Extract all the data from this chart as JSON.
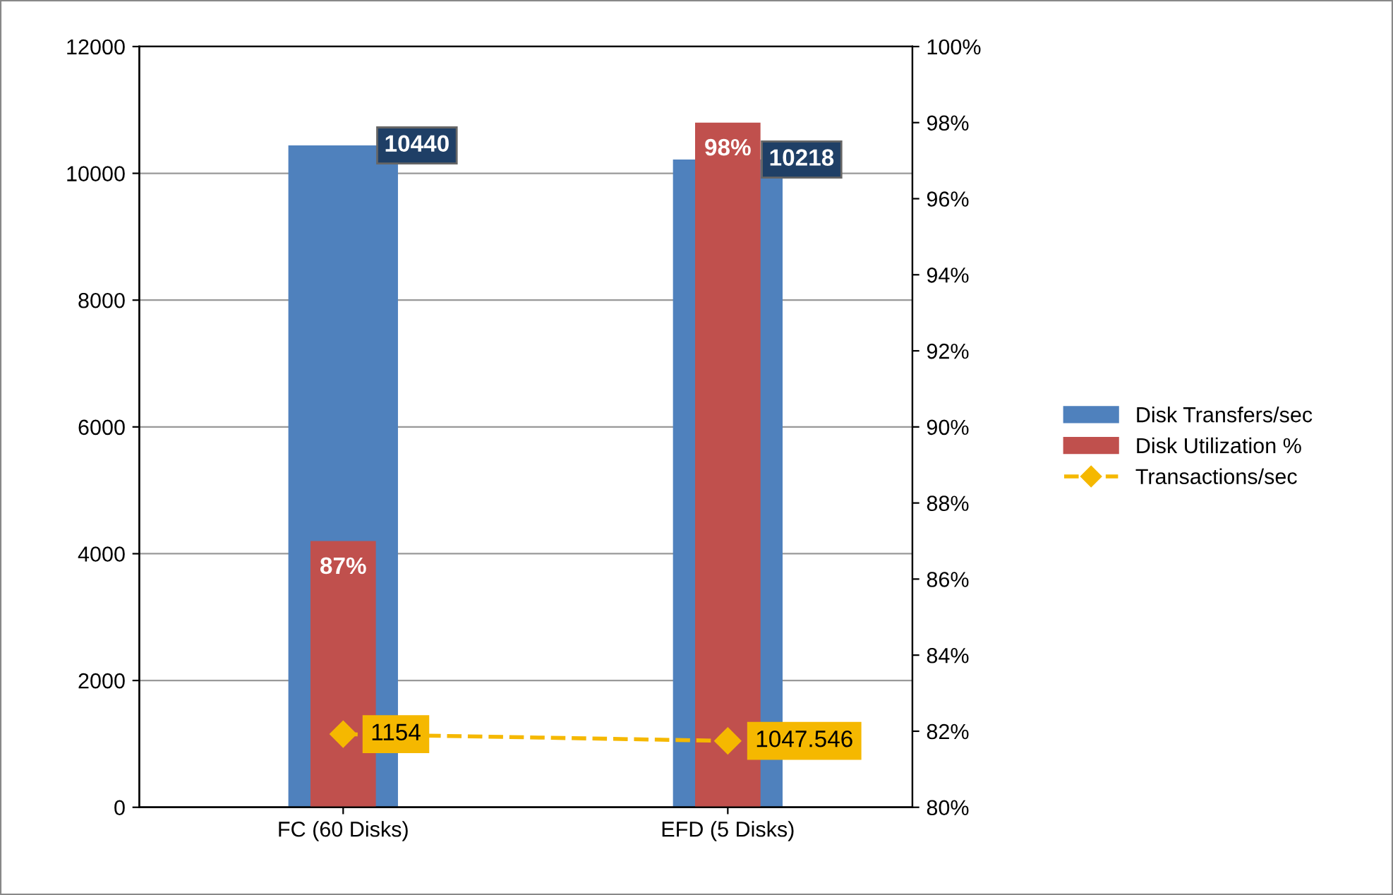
{
  "chart_data": {
    "type": "bar",
    "categories": [
      "FC (60 Disks)",
      "EFD (5 Disks)"
    ],
    "series": [
      {
        "name": "Disk Transfers/sec",
        "color": "#4f81bd",
        "values": [
          10440,
          10218
        ],
        "value_labels": [
          "10440",
          "10218"
        ]
      },
      {
        "name": "Disk Utilization %",
        "axis": "y2",
        "color": "#c0504d",
        "values": [
          87,
          98
        ],
        "value_labels": [
          "87%",
          "98%"
        ]
      },
      {
        "name": "Transactions/sec",
        "type": "line",
        "color": "#f5b800",
        "marker": "diamond",
        "line_style": "dashed",
        "values": [
          1154,
          1047.546
        ],
        "value_labels": [
          "1154",
          "1047.546"
        ]
      }
    ],
    "ylim": [
      0,
      12000
    ],
    "yticks": [
      0,
      2000,
      4000,
      6000,
      8000,
      10000,
      12000
    ],
    "y2lim": [
      80,
      100
    ],
    "y2ticks": [
      {
        "value": 80,
        "label": "80%"
      },
      {
        "value": 82,
        "label": "82%"
      },
      {
        "value": 84,
        "label": "84%"
      },
      {
        "value": 86,
        "label": "86%"
      },
      {
        "value": 88,
        "label": "88%"
      },
      {
        "value": 90,
        "label": "90%"
      },
      {
        "value": 92,
        "label": "92%"
      },
      {
        "value": 94,
        "label": "94%"
      },
      {
        "value": 96,
        "label": "96%"
      },
      {
        "value": 98,
        "label": "98%"
      },
      {
        "value": 100,
        "label": "100%"
      }
    ],
    "grid": "y",
    "legend": "right"
  }
}
